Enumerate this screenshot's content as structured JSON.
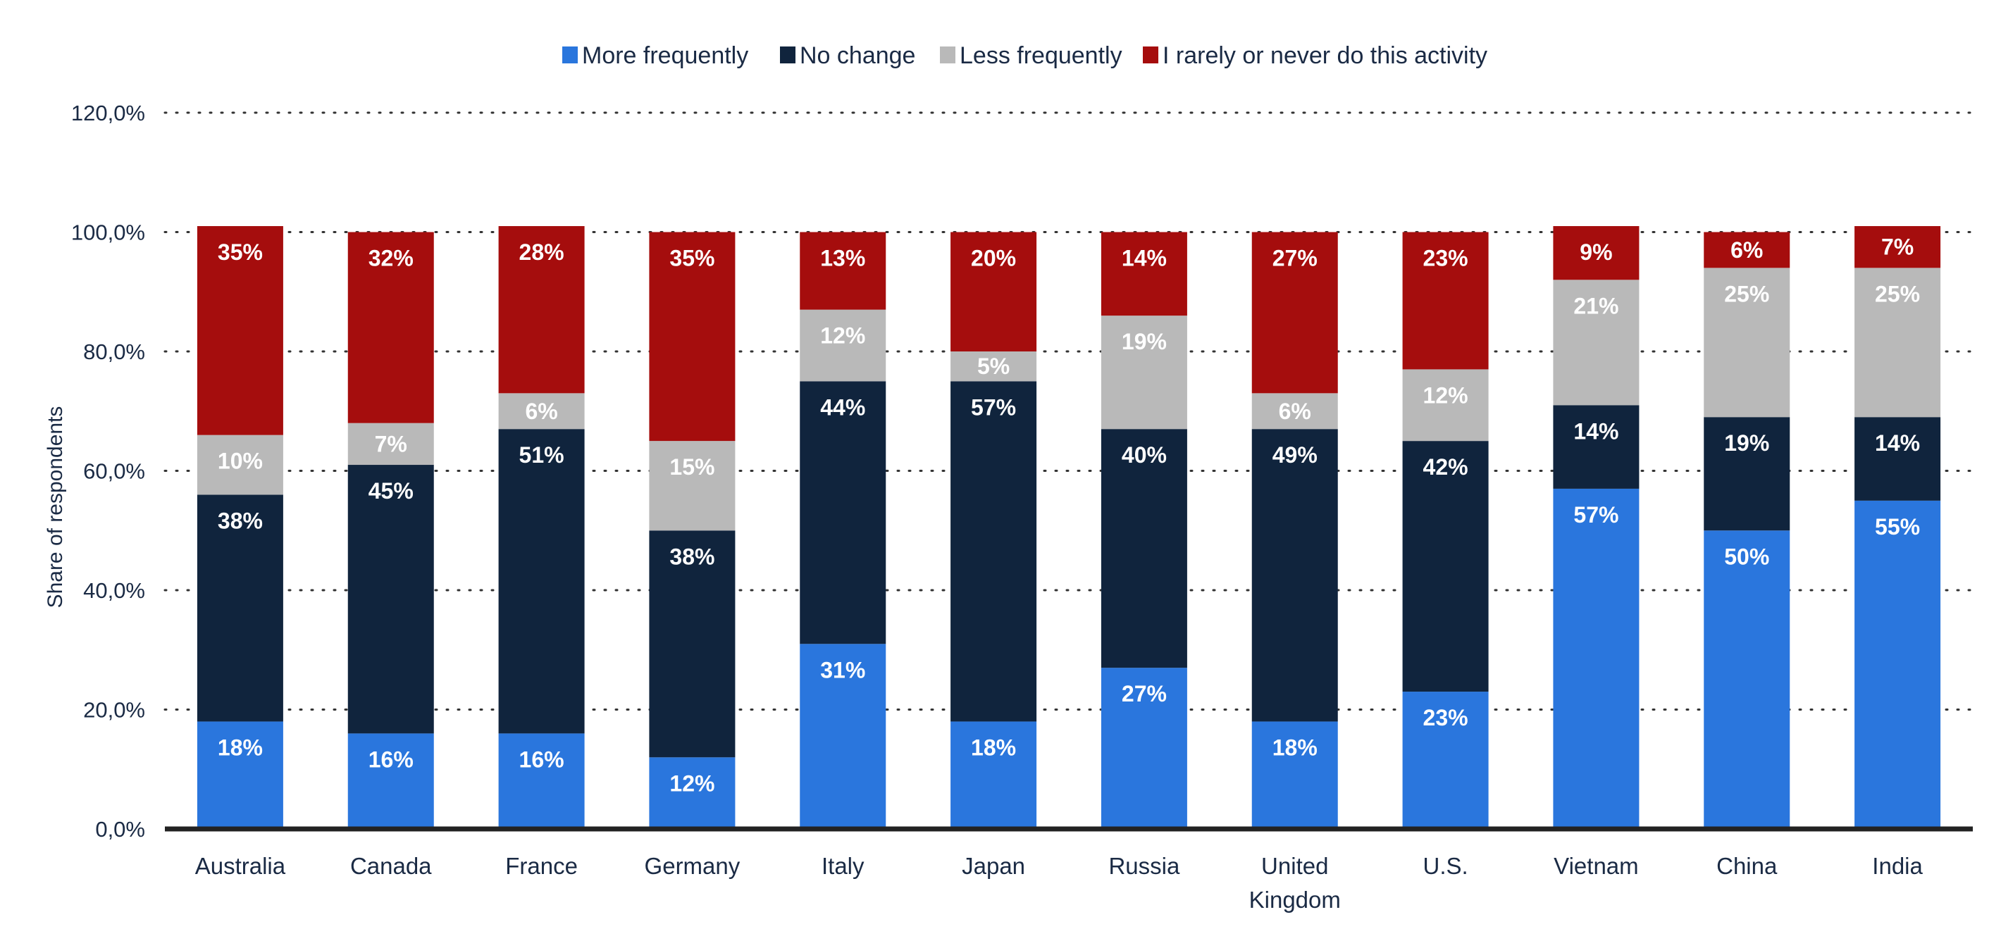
{
  "chart_data": {
    "type": "bar",
    "stacked": true,
    "title": "",
    "xlabel": "",
    "ylabel": "Share of respondents",
    "ylim": [
      0,
      120
    ],
    "yticks": [
      0,
      20,
      40,
      60,
      80,
      100,
      120
    ],
    "ytick_labels": [
      "0,0%",
      "20,0%",
      "40,0%",
      "60,0%",
      "80,0%",
      "100,0%",
      "120,0%"
    ],
    "grid": true,
    "legend_position": "top-center",
    "categories": [
      "Australia",
      "Canada",
      "France",
      "Germany",
      "Italy",
      "Japan",
      "Russia",
      "United Kingdom",
      "U.S.",
      "Vietnam",
      "China",
      "India"
    ],
    "category_lines": [
      [
        "Australia"
      ],
      [
        "Canada"
      ],
      [
        "France"
      ],
      [
        "Germany"
      ],
      [
        "Italy"
      ],
      [
        "Japan"
      ],
      [
        "Russia"
      ],
      [
        "United",
        "Kingdom"
      ],
      [
        "U.S."
      ],
      [
        "Vietnam"
      ],
      [
        "China"
      ],
      [
        "India"
      ]
    ],
    "series": [
      {
        "name": "More frequently",
        "color": "#2a76dd",
        "values": [
          18,
          16,
          16,
          12,
          31,
          18,
          27,
          18,
          23,
          57,
          50,
          55
        ]
      },
      {
        "name": "No change",
        "color": "#10243d",
        "values": [
          38,
          45,
          51,
          38,
          44,
          57,
          40,
          49,
          42,
          14,
          19,
          14
        ]
      },
      {
        "name": "Less frequently",
        "color": "#b9b9b9",
        "values": [
          10,
          7,
          6,
          15,
          12,
          5,
          19,
          6,
          12,
          21,
          25,
          25
        ]
      },
      {
        "name": "I rarely or never do this activity",
        "color": "#a50d0d",
        "values": [
          35,
          32,
          28,
          35,
          13,
          20,
          14,
          27,
          23,
          9,
          6,
          7
        ]
      }
    ]
  }
}
